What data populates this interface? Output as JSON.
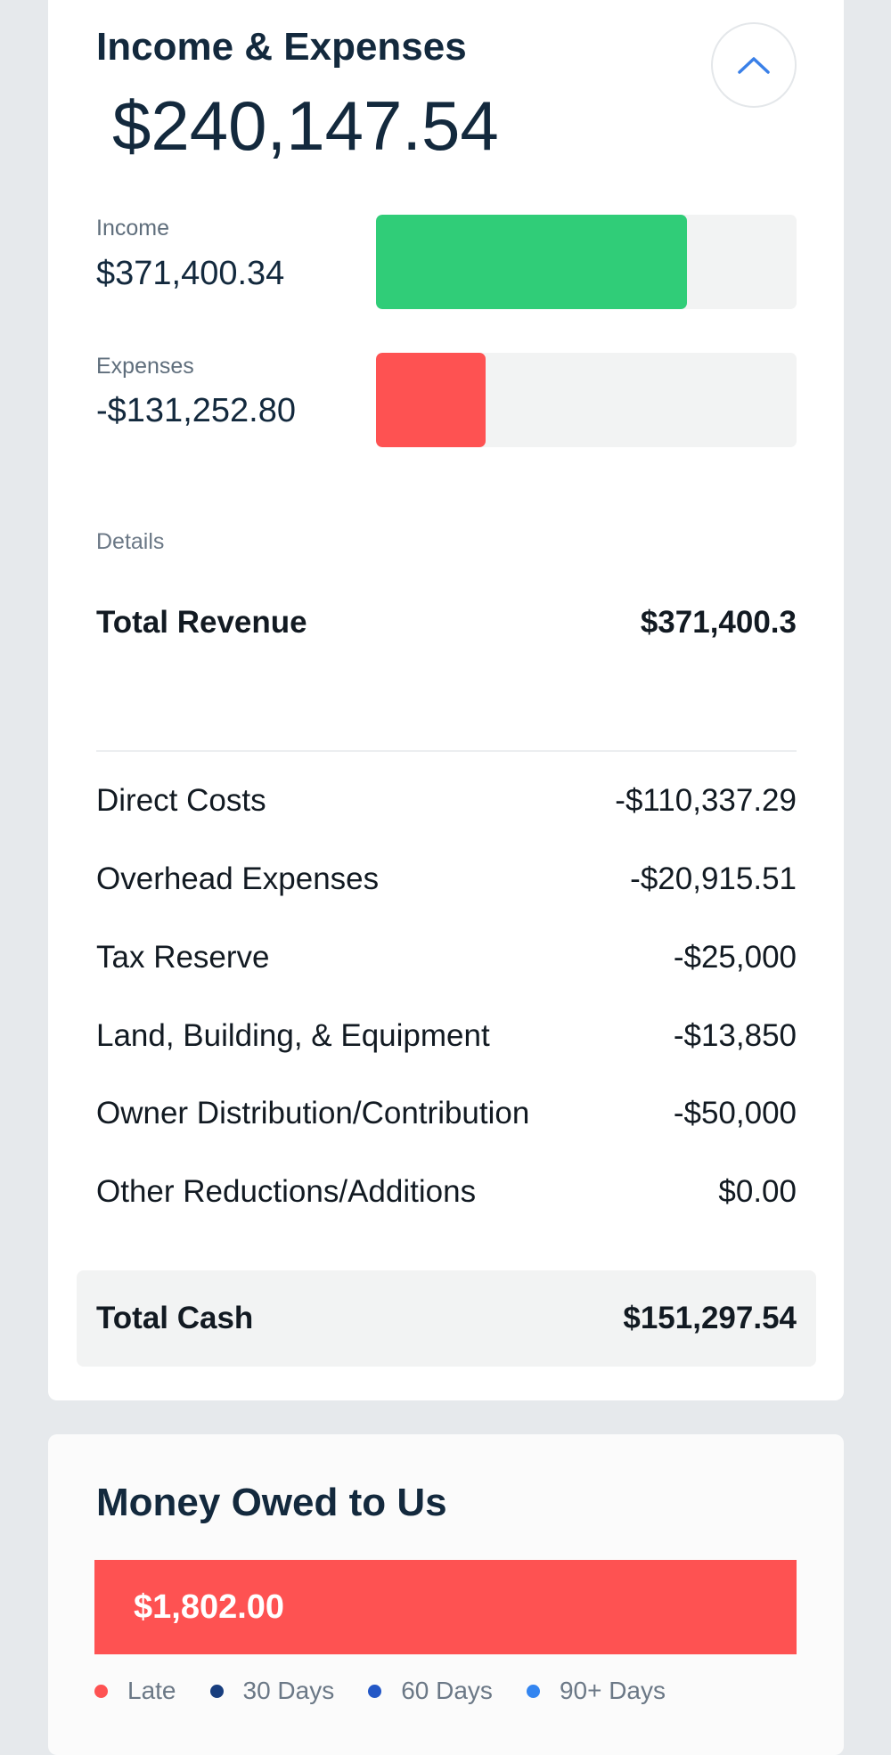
{
  "income_card": {
    "title": "Income & Expenses",
    "collapse_icon": "chevron-up-icon",
    "net_total": "$240,147.54",
    "income": {
      "label": "Income",
      "value": "$371,400.34",
      "bar_fraction": 0.74,
      "color": "#30cd78"
    },
    "expenses": {
      "label": "Expenses",
      "value": "-$131,252.80",
      "bar_fraction": 0.26,
      "color": "#fe5252"
    },
    "details_label": "Details",
    "total_revenue": {
      "label": "Total Revenue",
      "value": "$371,400.3"
    },
    "line_items": [
      {
        "label": "Direct Costs",
        "value": "-$110,337.29"
      },
      {
        "label": "Overhead Expenses",
        "value": "-$20,915.51"
      },
      {
        "label": "Tax Reserve",
        "value": "-$25,000"
      },
      {
        "label": "Land, Building, & Equipment",
        "value": "-$13,850"
      },
      {
        "label": "Owner Distribution/Contribution",
        "value": "-$50,000"
      },
      {
        "label": "Other Reductions/Additions",
        "value": "$0.00"
      }
    ],
    "total_cash": {
      "label": "Total Cash",
      "value": "$151,297.54"
    }
  },
  "owed_card": {
    "title": "Money Owed to Us",
    "amount": "$1,802.00",
    "bar_color": "#fe5252",
    "legend": [
      {
        "label": "Late",
        "color": "#fe5252"
      },
      {
        "label": "30 Days",
        "color": "#183e7e"
      },
      {
        "label": "60 Days",
        "color": "#2357c6"
      },
      {
        "label": "90+ Days",
        "color": "#3385f0"
      }
    ]
  },
  "accent_color": "#3a80e8"
}
